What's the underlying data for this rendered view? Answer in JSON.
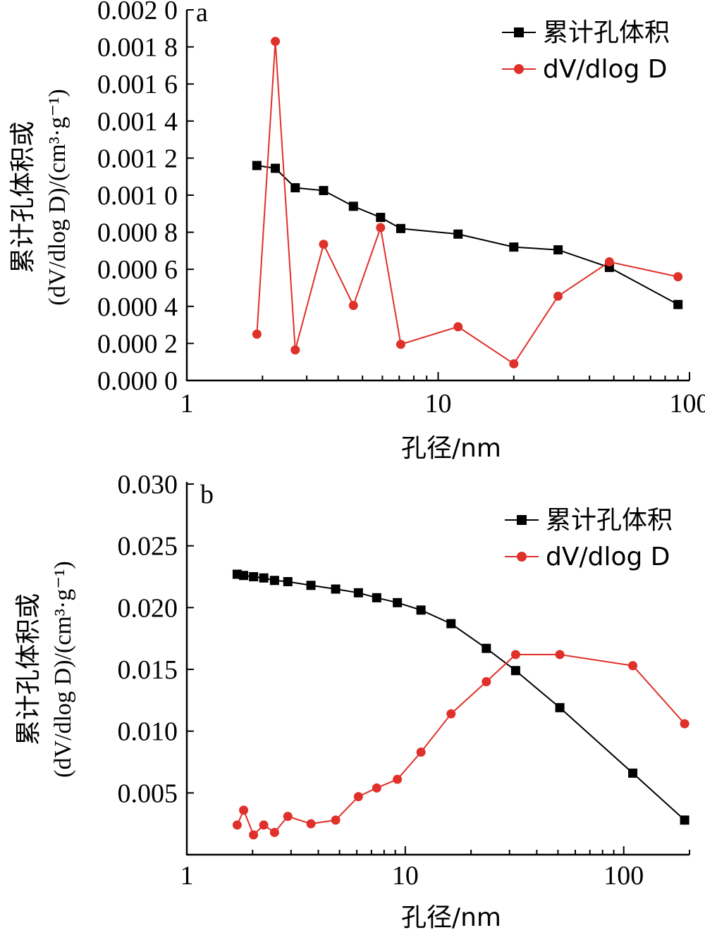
{
  "chart_data": [
    {
      "type": "line",
      "panel_label": "a",
      "xlabel": "孔径/nm",
      "ylabel_line1": "累计孔体积或",
      "ylabel_line2": "(dV/dlog D)/(cm³·g⁻¹)",
      "xscale": "log",
      "xlim": [
        1,
        100
      ],
      "ylim": [
        0,
        0.002
      ],
      "xticks": [
        1,
        10,
        100
      ],
      "xtick_labels": [
        "1",
        "10",
        "100"
      ],
      "yticks": [
        0,
        0.0002,
        0.0004,
        0.0006,
        0.0008,
        0.001,
        0.0012,
        0.0014,
        0.0016,
        0.0018,
        0.002
      ],
      "ytick_labels": [
        "0.000 0",
        "0.000 2",
        "0.000 4",
        "0.000 6",
        "0.000 8",
        "0.001 0",
        "0.001 2",
        "0.001 4",
        "0.001 6",
        "0.001 8",
        "0.002 0"
      ],
      "grid": false,
      "legend_position": "top-right",
      "series": [
        {
          "name": "累计孔体积",
          "marker": "square",
          "color": "#000000",
          "x": [
            1.9,
            2.25,
            2.7,
            3.5,
            4.6,
            5.9,
            7.1,
            12,
            20,
            30,
            48,
            90
          ],
          "y": [
            0.00116,
            0.001145,
            0.00104,
            0.001025,
            0.00094,
            0.00088,
            0.00082,
            0.00079,
            0.00072,
            0.000705,
            0.00061,
            0.00041
          ]
        },
        {
          "name": "dV/dlog D",
          "marker": "circle",
          "color": "#e0302a",
          "x": [
            1.9,
            2.25,
            2.7,
            3.5,
            4.6,
            5.9,
            7.1,
            12,
            20,
            30,
            48,
            90
          ],
          "y": [
            0.00025,
            0.00183,
            0.000165,
            0.000735,
            0.000405,
            0.000825,
            0.000195,
            0.00029,
            9e-05,
            0.000455,
            0.00064,
            0.00056
          ]
        }
      ]
    },
    {
      "type": "line",
      "panel_label": "b",
      "xlabel": "孔径/nm",
      "ylabel_line1": "累计孔体积或",
      "ylabel_line2": "(dV/dlog D)/(cm³·g⁻¹)",
      "xscale": "log",
      "xlim": [
        1,
        200
      ],
      "ylim": [
        0,
        0.03
      ],
      "xticks": [
        1,
        10,
        100
      ],
      "xtick_labels": [
        "1",
        "10",
        "100"
      ],
      "yticks": [
        0.005,
        0.01,
        0.015,
        0.02,
        0.025,
        0.03
      ],
      "ytick_labels": [
        "0.005",
        "0.010",
        "0.015",
        "0.020",
        "0.025",
        "0.030"
      ],
      "grid": false,
      "legend_position": "top-right",
      "series": [
        {
          "name": "累计孔体积",
          "marker": "square",
          "color": "#000000",
          "x": [
            1.7,
            1.82,
            2.02,
            2.25,
            2.52,
            2.9,
            3.7,
            4.8,
            6.1,
            7.4,
            9.2,
            11.8,
            16.2,
            23.5,
            32,
            51,
            110,
            190
          ],
          "y": [
            0.0227,
            0.0226,
            0.0225,
            0.0224,
            0.0222,
            0.0221,
            0.0218,
            0.0215,
            0.0212,
            0.0208,
            0.0204,
            0.0198,
            0.0187,
            0.0167,
            0.0149,
            0.0119,
            0.0066,
            0.0028
          ]
        },
        {
          "name": "dV/dlog D",
          "marker": "circle",
          "color": "#e0302a",
          "x": [
            1.7,
            1.82,
            2.02,
            2.25,
            2.52,
            2.9,
            3.7,
            4.8,
            6.1,
            7.4,
            9.2,
            11.8,
            16.2,
            23.5,
            32,
            51,
            110,
            190
          ],
          "y": [
            0.0024,
            0.0036,
            0.0016,
            0.0024,
            0.0018,
            0.0031,
            0.0025,
            0.0028,
            0.0047,
            0.0054,
            0.0061,
            0.0083,
            0.0114,
            0.014,
            0.0162,
            0.0162,
            0.0153,
            0.0106
          ]
        }
      ]
    }
  ]
}
